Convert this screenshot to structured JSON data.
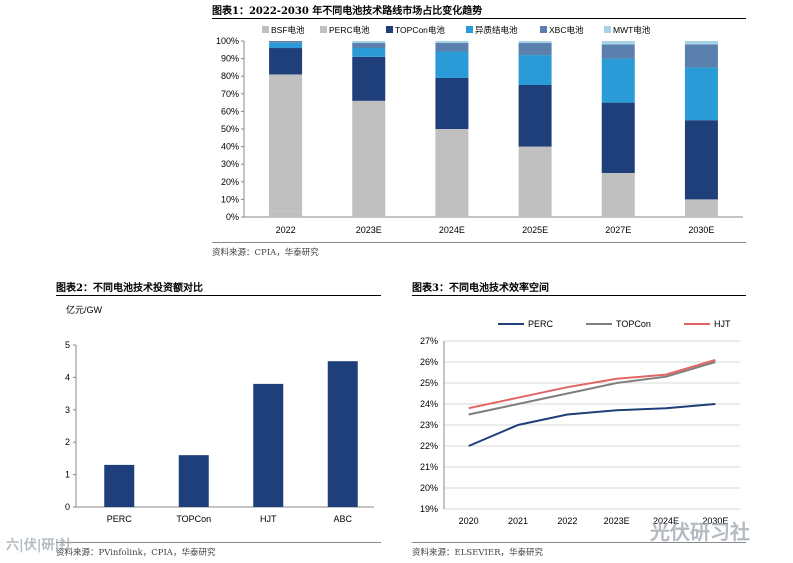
{
  "figures": {
    "fig1": {
      "title": "图表1：2022-2030 年不同电池技术路线市场占比变化趋势",
      "source": "资料来源：CPIA，华泰研究"
    },
    "fig2": {
      "title": "图表2：不同电池技术投资额对比",
      "source": "资料来源：PVinfolink，CPIA，华泰研究"
    },
    "fig3": {
      "title": "图表3：不同电池技术效率空间",
      "source": "资料来源：ELSEVIER，华泰研究"
    }
  },
  "watermark": {
    "left": "六|伏|研|社",
    "right": "光伏研习社"
  },
  "chart_data": [
    {
      "id": "market-share",
      "type": "bar",
      "stacked": true,
      "categories": [
        "2022",
        "2023E",
        "2024E",
        "2025E",
        "2027E",
        "2030E"
      ],
      "series": [
        {
          "name": "BSF电池",
          "color": "#bfbfbf",
          "values": [
            3,
            0,
            0,
            0,
            0,
            0
          ]
        },
        {
          "name": "PERC电池",
          "color": "#c0c0c0",
          "values": [
            78,
            66,
            50,
            40,
            25,
            10
          ]
        },
        {
          "name": "TOPCon电池",
          "color": "#1f3f7a",
          "values": [
            15,
            25,
            29,
            35,
            40,
            45
          ]
        },
        {
          "name": "异质结电池",
          "color": "#2a9bd6",
          "values": [
            3,
            5,
            15,
            17,
            25,
            30
          ]
        },
        {
          "name": "XBC电池",
          "color": "#5c80ae",
          "values": [
            1,
            3,
            5,
            7,
            8,
            13
          ]
        },
        {
          "name": "MWT电池",
          "color": "#a7d3e9",
          "values": [
            0,
            1,
            1,
            1,
            2,
            2
          ]
        }
      ],
      "ylim": [
        0,
        100
      ],
      "yticks": [
        "0%",
        "10%",
        "20%",
        "30%",
        "40%",
        "50%",
        "60%",
        "70%",
        "80%",
        "90%",
        "100%"
      ],
      "legend": "top"
    },
    {
      "id": "investment",
      "type": "bar",
      "ylabel": "亿元/GW",
      "categories": [
        "PERC",
        "TOPCon",
        "HJT",
        "ABC"
      ],
      "values": [
        1.3,
        1.6,
        3.8,
        4.5
      ],
      "color": "#1f3f7a",
      "ylim": [
        0,
        5
      ],
      "yticks": [
        "0",
        "1",
        "2",
        "3",
        "4",
        "5"
      ]
    },
    {
      "id": "efficiency",
      "type": "line",
      "categories": [
        "2020",
        "2021",
        "2022",
        "2023E",
        "2024E",
        "2030E"
      ],
      "series": [
        {
          "name": "PERC",
          "color": "#1f3f7a",
          "values": [
            22.0,
            23.0,
            23.5,
            23.7,
            23.8,
            24.0
          ]
        },
        {
          "name": "TOPCon",
          "color": "#7f7f7f",
          "values": [
            23.5,
            24.0,
            24.5,
            25.0,
            25.3,
            26.0
          ]
        },
        {
          "name": "HJT",
          "color": "#e06666",
          "values": [
            23.8,
            24.3,
            24.8,
            25.2,
            25.4,
            26.1
          ]
        }
      ],
      "ylim": [
        19,
        27
      ],
      "yticks": [
        "19%",
        "20%",
        "21%",
        "22%",
        "23%",
        "24%",
        "25%",
        "26%",
        "27%"
      ],
      "legend": "top"
    }
  ]
}
